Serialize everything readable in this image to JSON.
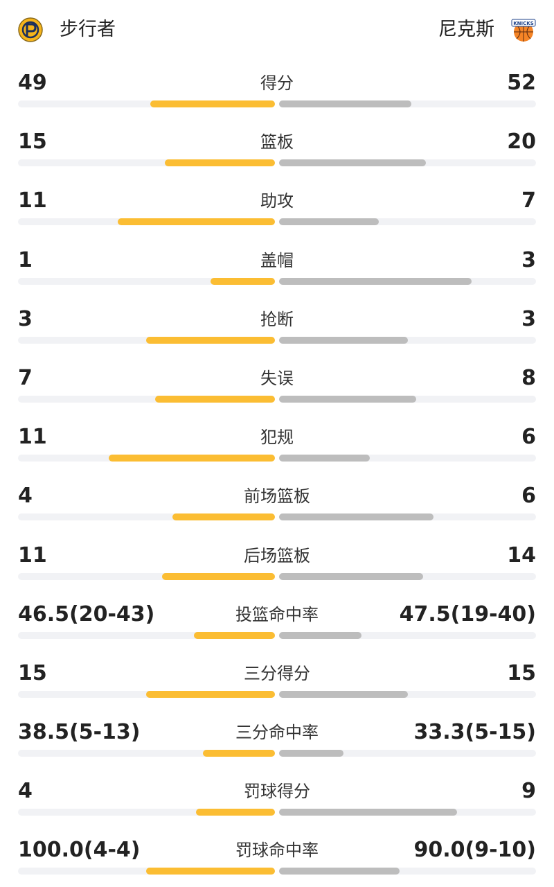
{
  "header": {
    "home_team": {
      "name": "步行者",
      "logo_icon": "pacers-logo-icon"
    },
    "away_team": {
      "name": "尼克斯",
      "logo_icon": "knicks-logo-icon",
      "logo_text": "KNICKS"
    }
  },
  "colors": {
    "home_bar": "#fbbd33",
    "away_bar": "#bdbdbd",
    "track": "#f1f2f5",
    "text": "#222222"
  },
  "stats": [
    {
      "label": "得分",
      "home": "49",
      "away": "52",
      "home_fill": 0.485,
      "away_fill": 0.515
    },
    {
      "label": "篮板",
      "home": "15",
      "away": "20",
      "home_fill": 0.429,
      "away_fill": 0.571
    },
    {
      "label": "助攻",
      "home": "11",
      "away": "7",
      "home_fill": 0.611,
      "away_fill": 0.389
    },
    {
      "label": "盖帽",
      "home": "1",
      "away": "3",
      "home_fill": 0.25,
      "away_fill": 0.75
    },
    {
      "label": "抢断",
      "home": "3",
      "away": "3",
      "home_fill": 0.5,
      "away_fill": 0.5
    },
    {
      "label": "失误",
      "home": "7",
      "away": "8",
      "home_fill": 0.467,
      "away_fill": 0.533
    },
    {
      "label": "犯规",
      "home": "11",
      "away": "6",
      "home_fill": 0.647,
      "away_fill": 0.353
    },
    {
      "label": "前场篮板",
      "home": "4",
      "away": "6",
      "home_fill": 0.4,
      "away_fill": 0.6
    },
    {
      "label": "后场篮板",
      "home": "11",
      "away": "14",
      "home_fill": 0.44,
      "away_fill": 0.56
    },
    {
      "label": "投篮命中率",
      "home": "46.5(20-43)",
      "away": "47.5(19-40)",
      "home_fill": 0.315,
      "away_fill": 0.32
    },
    {
      "label": "三分得分",
      "home": "15",
      "away": "15",
      "home_fill": 0.5,
      "away_fill": 0.5
    },
    {
      "label": "三分命中率",
      "home": "38.5(5-13)",
      "away": "33.3(5-15)",
      "home_fill": 0.28,
      "away_fill": 0.25
    },
    {
      "label": "罚球得分",
      "home": "4",
      "away": "9",
      "home_fill": 0.308,
      "away_fill": 0.692
    },
    {
      "label": "罚球命中率",
      "home": "100.0(4-4)",
      "away": "90.0(9-10)",
      "home_fill": 0.5,
      "away_fill": 0.47
    }
  ]
}
